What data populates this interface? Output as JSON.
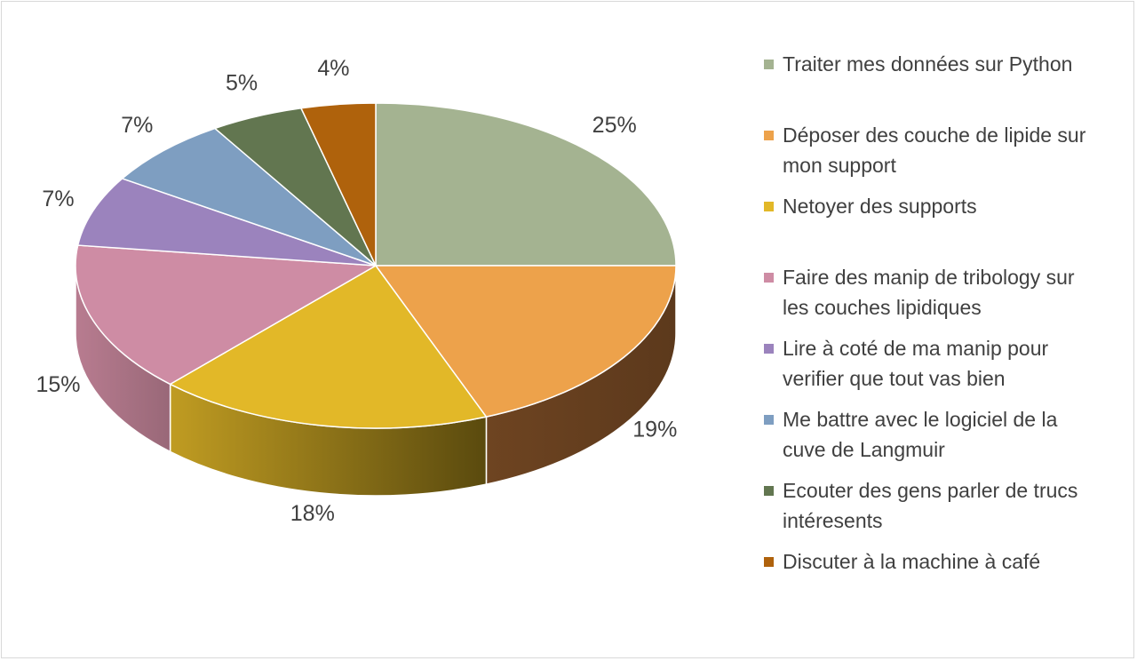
{
  "chart_data": {
    "type": "pie",
    "title": "",
    "slices": [
      {
        "label": "Traiter mes données sur Python",
        "value": 25,
        "value_label": "25%",
        "color": "#A4B391",
        "side_color": "#6E7A5F"
      },
      {
        "label": "Déposer des couche de lipide sur mon support",
        "value": 19,
        "value_label": "19%",
        "color": "#EDA24B",
        "side_color": "#663F1F"
      },
      {
        "label": "Netoyer des supports",
        "value": 18,
        "value_label": "18%",
        "color": "#E2B828",
        "side_color": "#A88A1C"
      },
      {
        "label": "Faire des manip de tribology sur les couches lipidiques",
        "value": 15,
        "value_label": "15%",
        "color": "#CE8CA4",
        "side_color": "#AA7385"
      },
      {
        "label": "Lire à coté de ma manip pour verifier que tout vas bien",
        "value": 7,
        "value_label": "7%",
        "color": "#9B83BD",
        "side_color": "#76639A"
      },
      {
        "label": "Me battre avec le logiciel de la cuve de Langmuir",
        "value": 7,
        "value_label": "7%",
        "color": "#7E9EC1",
        "side_color": "#5F7A96"
      },
      {
        "label": "Ecouter des gens parler de trucs intéresents",
        "value": 5,
        "value_label": "5%",
        "color": "#627650",
        "side_color": "#44533A"
      },
      {
        "label": "Discuter à la machine à café",
        "value": 4,
        "value_label": "4%",
        "color": "#AF620C",
        "side_color": "#7A4508"
      }
    ],
    "legend_position": "right"
  },
  "legend": {
    "items": [
      {
        "text": "Traiter mes données sur Python"
      },
      {
        "text": "Déposer des couche de lipide sur\nmon support"
      },
      {
        "text": "Netoyer des supports"
      },
      {
        "text": "Faire des manip de tribology sur\nles couches lipidiques"
      },
      {
        "text": "Lire à coté de ma manip pour\nverifier que tout vas bien"
      },
      {
        "text": "Me battre avec le logiciel de la\ncuve de Langmuir"
      },
      {
        "text": "Ecouter des gens parler de trucs\nintéresents"
      },
      {
        "text": "Discuter à la machine à café"
      }
    ]
  }
}
